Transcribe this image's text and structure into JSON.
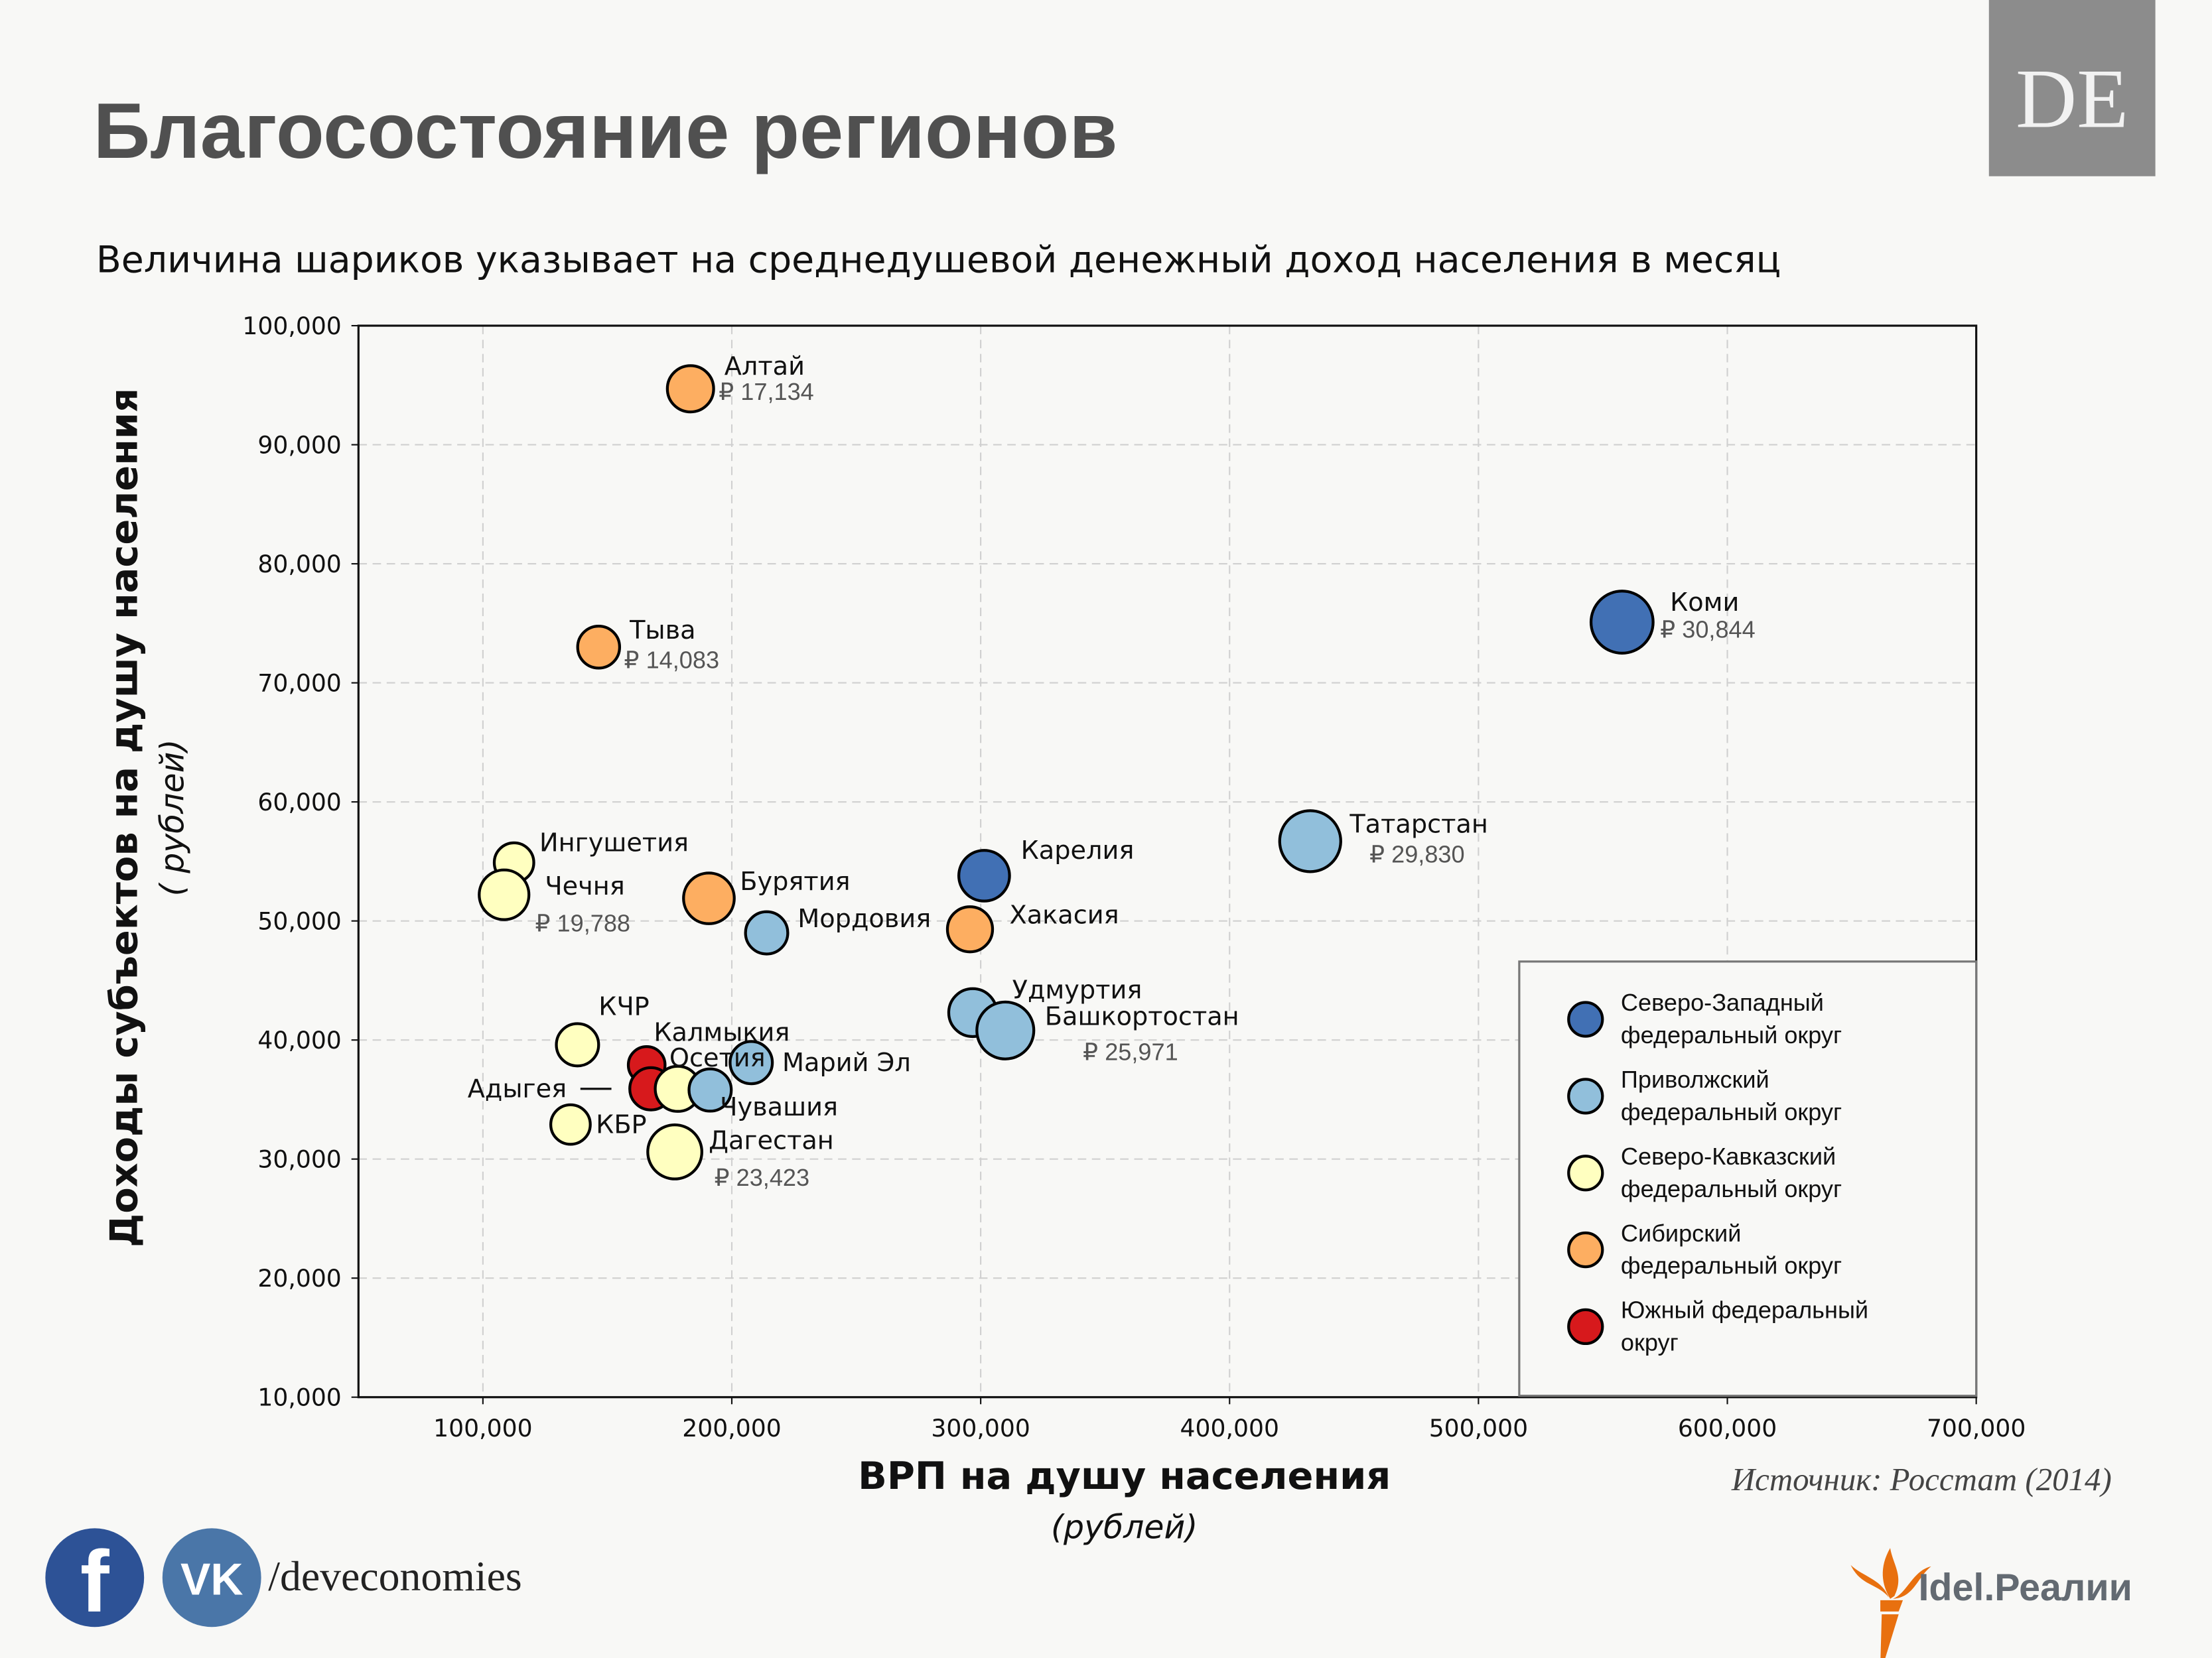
{
  "header": {
    "title": "Благосостояние регионов",
    "subtitle": "Величина шариков указывает на среднедушевой денежный доход населения в месяц",
    "logo_text": "DE"
  },
  "footer": {
    "social_handle": "/deveconomies",
    "social_icons": [
      "facebook-icon",
      "vk-icon"
    ],
    "facebook_glyph": "f",
    "vk_glyph": "VK",
    "source": "Источник: Росстат (2014)",
    "brand_logo": "Idel.Реалии"
  },
  "colors": {
    "Северо-Западный федеральный округ": "#4170b4",
    "Приволжский федеральный округ": "#91bfdb",
    "Северо-Кавказский федеральный округ": "#ffffc0",
    "Сибирский федеральный округ": "#fdae61",
    "Южный федеральный округ": "#d7191c"
  },
  "chart_data": {
    "type": "scatter",
    "subtype": "bubble",
    "xlabel": "ВРП на душу населения",
    "xlabel_unit": "(рублей)",
    "ylabel": "Доходы субъектов на душу населения",
    "ylabel_unit": "( рублей)",
    "xlim": [
      50000,
      700000
    ],
    "ylim": [
      10000,
      100000
    ],
    "xticks": [
      "100,000",
      "200,000",
      "300,000",
      "400,000",
      "500,000",
      "600,000",
      "700,000"
    ],
    "yticks": [
      "10,000",
      "20,000",
      "30,000",
      "40,000",
      "50,000",
      "60,000",
      "70,000",
      "80,000",
      "90,000",
      "100,000"
    ],
    "grid": true,
    "legend_position": "lower-right",
    "legend": [
      {
        "label": "Северо-Западный федеральный округ",
        "lines": [
          "Северо-Западный",
          "федеральный округ"
        ]
      },
      {
        "label": "Приволжский федеральный округ",
        "lines": [
          "Приволжский",
          "федеральный округ"
        ]
      },
      {
        "label": "Северо-Кавказский федеральный округ",
        "lines": [
          "Северо-Кавказский",
          "федеральный округ"
        ]
      },
      {
        "label": "Сибирский федеральный округ",
        "lines": [
          "Сибирский",
          "федеральный округ"
        ]
      },
      {
        "label": "Южный федеральный округ",
        "lines": [
          "Южный федеральный",
          "округ"
        ]
      }
    ],
    "size_variable": "среднедушевой денежный доход в месяц (₽)",
    "points": [
      {
        "name": "Алтай",
        "district": "Сибирский федеральный округ",
        "x": 183400,
        "y": 94700,
        "income": 17134,
        "income_label": "₽ 17,134"
      },
      {
        "name": "Тыва",
        "district": "Сибирский федеральный округ",
        "x": 146500,
        "y": 73000,
        "income": 14083,
        "income_label": "₽ 14,083"
      },
      {
        "name": "Коми",
        "district": "Северо-Западный федеральный округ",
        "x": 557700,
        "y": 75100,
        "income": 30844,
        "income_label": "₽ 30,844"
      },
      {
        "name": "Татарстан",
        "district": "Приволжский федеральный округ",
        "x": 432400,
        "y": 56700,
        "income": 29830,
        "income_label": "₽ 29,830"
      },
      {
        "name": "Карелия",
        "district": "Северо-Западный федеральный округ",
        "x": 301400,
        "y": 53800,
        "income": 20600
      },
      {
        "name": "Хакасия",
        "district": "Сибирский федеральный округ",
        "x": 295700,
        "y": 49300,
        "income": 16300
      },
      {
        "name": "Бурятия",
        "district": "Сибирский федеральный округ",
        "x": 190800,
        "y": 51900,
        "income": 20600
      },
      {
        "name": "Мордовия",
        "district": "Приволжский федеральный округ",
        "x": 214000,
        "y": 49000,
        "income": 14300
      },
      {
        "name": "Удмуртия",
        "district": "Приволжский федеральный округ",
        "x": 296800,
        "y": 42300,
        "income": 18400
      },
      {
        "name": "Башкортостан",
        "district": "Приволжский федеральный округ",
        "x": 309900,
        "y": 40800,
        "income": 25971,
        "income_label": "₽ 25,971"
      },
      {
        "name": "Ингушетия",
        "district": "Северо-Кавказский федеральный округ",
        "x": 112500,
        "y": 54900,
        "income": 12500
      },
      {
        "name": "Чечня",
        "district": "Северо-Кавказский федеральный округ",
        "x": 108500,
        "y": 52200,
        "income": 19788,
        "income_label": "₽ 19,788"
      },
      {
        "name": "КЧР",
        "district": "Северо-Кавказский федеральный округ",
        "x": 138000,
        "y": 39600,
        "income": 14300
      },
      {
        "name": "Калмыкия",
        "district": "Южный федеральный округ",
        "x": 165800,
        "y": 37900,
        "income": 10800
      },
      {
        "name": "Адыгея",
        "district": "Южный федеральный округ",
        "x": 167500,
        "y": 35900,
        "income": 14300
      },
      {
        "name": "Осетия",
        "district": "Северо-Кавказский федеральный округ",
        "x": 178300,
        "y": 35900,
        "income": 16300
      },
      {
        "name": "Чувашия",
        "district": "Приволжский федеральный округ",
        "x": 191300,
        "y": 35800,
        "income": 14300
      },
      {
        "name": "Марий Эл",
        "district": "Приволжский федеральный округ",
        "x": 207800,
        "y": 38100,
        "income": 14300
      },
      {
        "name": "КБР",
        "district": "Северо-Кавказский федеральный округ",
        "x": 135200,
        "y": 32900,
        "income": 12500
      },
      {
        "name": "Дагестан",
        "district": "Северо-Кавказский федеральный округ",
        "x": 177100,
        "y": 30600,
        "income": 23423,
        "income_label": "₽ 23,423"
      }
    ]
  }
}
